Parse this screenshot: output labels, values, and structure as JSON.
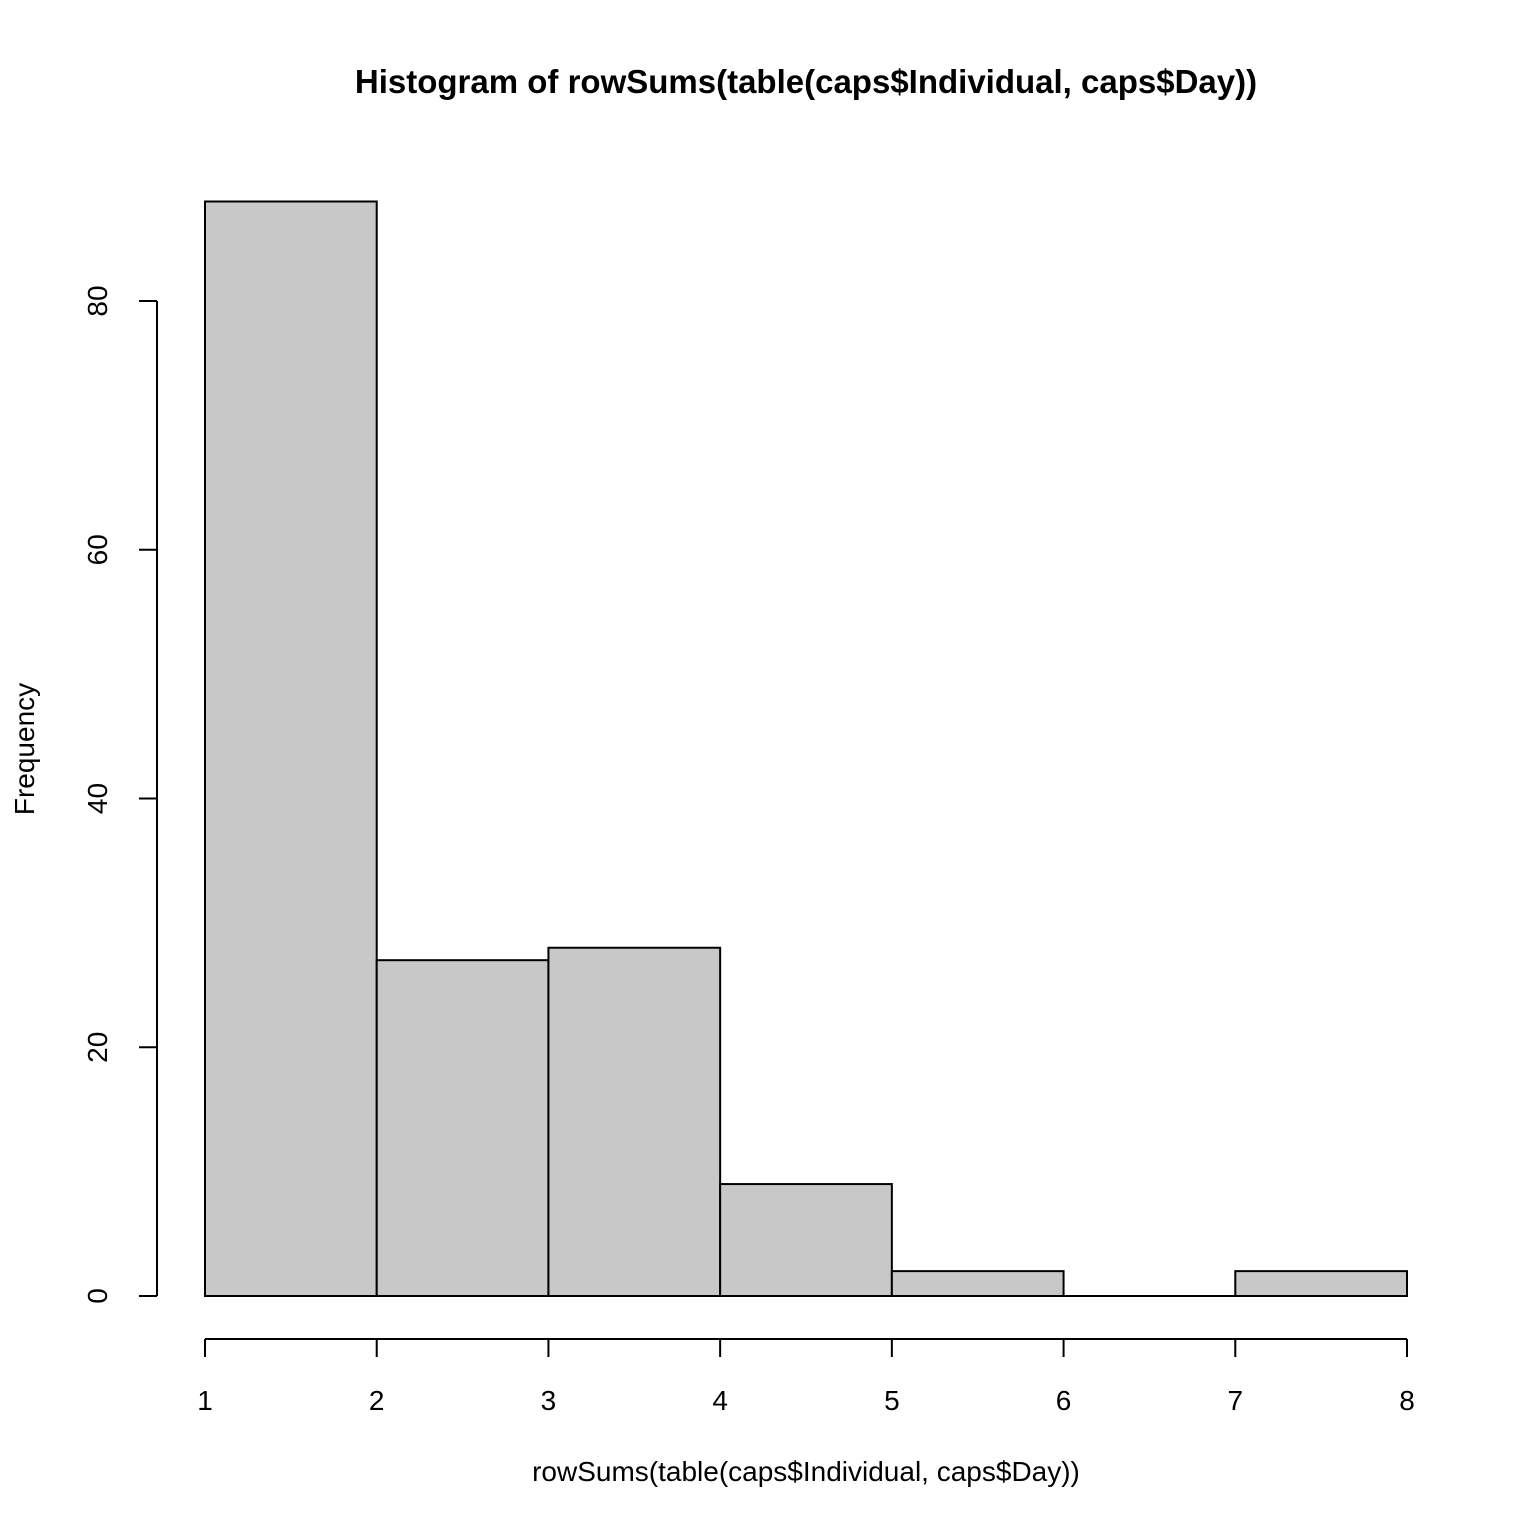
{
  "chart_data": {
    "type": "bar",
    "title": "Histogram of rowSums(table(caps$Individual, caps$Day))",
    "xlabel": "rowSums(table(caps$Individual, caps$Day))",
    "ylabel": "Frequency",
    "bins": [
      [
        1,
        2
      ],
      [
        2,
        3
      ],
      [
        3,
        4
      ],
      [
        4,
        5
      ],
      [
        5,
        6
      ],
      [
        6,
        7
      ],
      [
        7,
        8
      ]
    ],
    "values": [
      88,
      27,
      28,
      9,
      2,
      0,
      2
    ],
    "xlim": [
      1,
      8
    ],
    "ylim": [
      0,
      80
    ],
    "x_ticks": [
      "1",
      "2",
      "3",
      "4",
      "5",
      "6",
      "7",
      "8"
    ],
    "y_ticks": [
      "0",
      "20",
      "40",
      "60",
      "80"
    ],
    "grid": false,
    "bar_fill": "#c8c8c8",
    "bar_stroke": "#000000"
  }
}
